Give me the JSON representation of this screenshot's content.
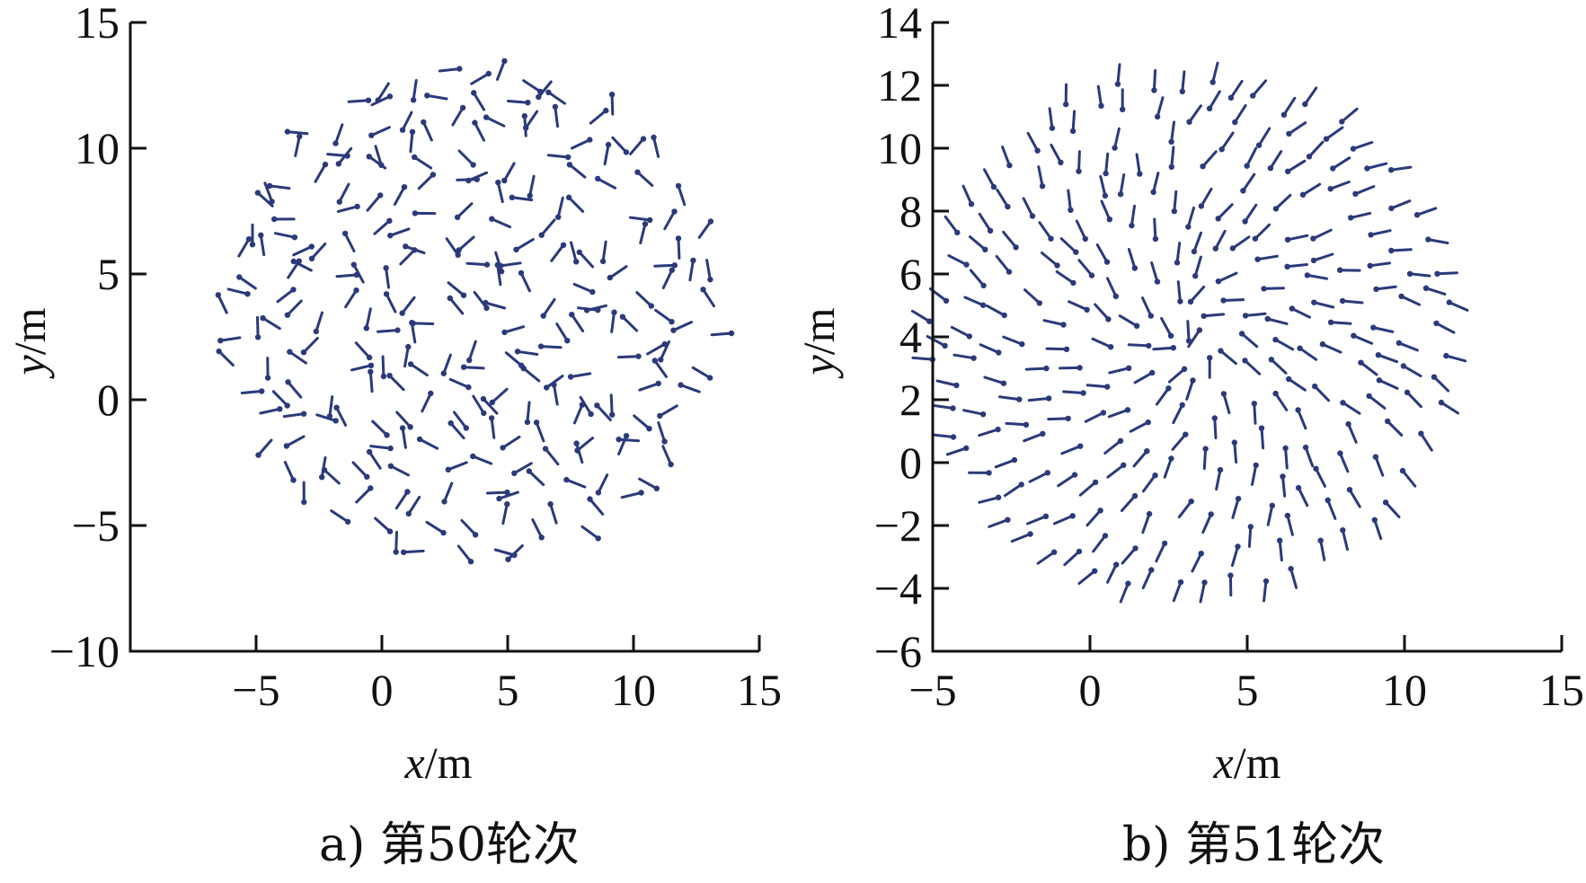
{
  "chart_data": [
    {
      "type": "scatter",
      "subtype": "quiver",
      "caption": "a) 第50轮次",
      "xlabel_var": "x",
      "xlabel_unit": "/m",
      "ylabel_var": "y",
      "ylabel_unit": "/m",
      "xlim": [
        -10,
        15
      ],
      "ylim": [
        -10,
        15
      ],
      "xticks": [
        -5,
        0,
        5,
        10,
        15
      ],
      "yticks": [
        -10,
        -5,
        0,
        5,
        10,
        15
      ],
      "xtick_labels": [
        "−5",
        "0",
        "5",
        "10",
        "15"
      ],
      "ytick_labels": [
        "−10",
        "−5",
        "0",
        "5",
        "10",
        "15"
      ],
      "grid": false,
      "pattern": "random",
      "center": [
        3.5,
        3.5
      ],
      "radius": 9.7,
      "count": 300,
      "arrow_color": "#2a3a7a"
    },
    {
      "type": "scatter",
      "subtype": "quiver",
      "caption": "b) 第51轮次",
      "xlabel_var": "x",
      "xlabel_unit": "/m",
      "ylabel_var": "y",
      "ylabel_unit": "/m",
      "xlim": [
        -5,
        15
      ],
      "ylim": [
        -6,
        14
      ],
      "xticks": [
        -5,
        0,
        5,
        10,
        15
      ],
      "yticks": [
        -6,
        -4,
        -2,
        0,
        2,
        4,
        6,
        8,
        10,
        12,
        14
      ],
      "xtick_labels": [
        "−5",
        "0",
        "5",
        "10",
        "15"
      ],
      "ytick_labels": [
        "−6",
        "−4",
        "−2",
        "0",
        "2",
        "4",
        "6",
        "8",
        "10",
        "12",
        "14"
      ],
      "grid": false,
      "pattern": "converging",
      "center": [
        3.2,
        4.1
      ],
      "radius": 8.9,
      "count": 260,
      "arrow_color": "#2a3a7a"
    }
  ]
}
